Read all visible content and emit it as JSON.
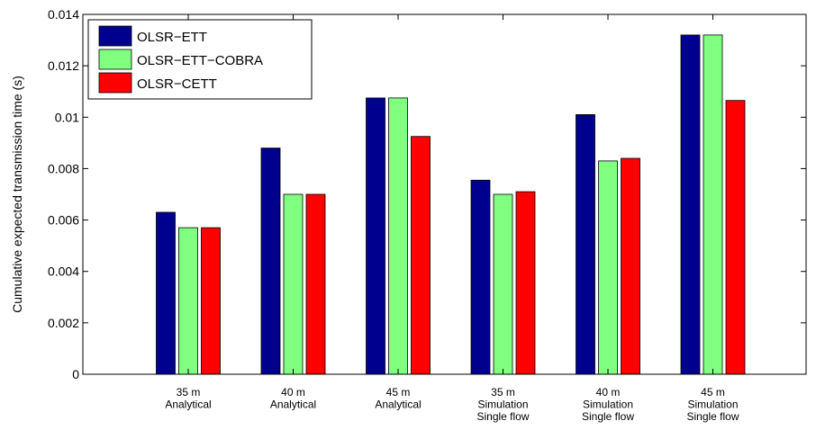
{
  "chart_data": {
    "type": "bar",
    "title": "",
    "xlabel": "",
    "ylabel": "Cumulative expected transmission time (s)",
    "ylim": [
      0,
      0.014
    ],
    "yticks": [
      "0",
      "0.002",
      "0.004",
      "0.006",
      "0.008",
      "0.01",
      "0.012",
      "0.014"
    ],
    "grid": false,
    "legend_position": "top-left",
    "categories": [
      [
        "35 m",
        "Analytical"
      ],
      [
        "40 m",
        "Analytical"
      ],
      [
        "45 m",
        "Analytical"
      ],
      [
        "35 m",
        "Simulation",
        "Single flow"
      ],
      [
        "40 m",
        "Simulation",
        "Single flow"
      ],
      [
        "45 m",
        "Simulation",
        "Single flow"
      ]
    ],
    "series": [
      {
        "name": "OLSR−ETT",
        "color": "#00008f",
        "values": [
          0.0063,
          0.0088,
          0.01075,
          0.00755,
          0.0101,
          0.0132
        ]
      },
      {
        "name": "OLSR−ETT−COBRA",
        "color": "#80ff80",
        "values": [
          0.0057,
          0.007,
          0.01075,
          0.007,
          0.0083,
          0.0132
        ]
      },
      {
        "name": "OLSR−CETT",
        "color": "#ff0000",
        "values": [
          0.0057,
          0.007,
          0.00925,
          0.0071,
          0.0084,
          0.01065
        ]
      }
    ]
  }
}
